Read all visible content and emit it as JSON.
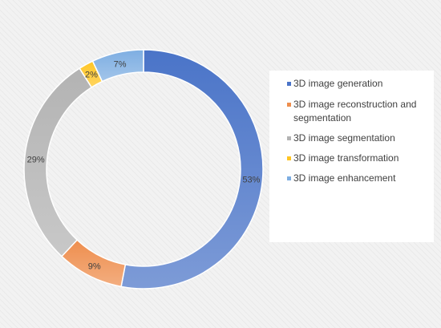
{
  "chart_data": {
    "type": "pie",
    "donut": true,
    "title": "",
    "legend_position": "right",
    "categories": [
      "3D image generation",
      "3D image reconstruction and segmentation",
      "3D image segmentation",
      "3D image transformation",
      "3D image enhancement"
    ],
    "values": [
      53,
      9,
      29,
      2,
      7
    ],
    "labels": [
      "53%",
      "9%",
      "29%",
      "2%",
      "7%"
    ],
    "colors": [
      "#4a74c8",
      "#ee8e4e",
      "#b3b3b3",
      "#ffc524",
      "#7eaee2"
    ],
    "legend": {
      "items": [
        {
          "lines": [
            "3D image generation"
          ],
          "color": "#4a74c8"
        },
        {
          "lines": [
            "3D image reconstruction and",
            "segmentation"
          ],
          "color": "#ee8e4e"
        },
        {
          "lines": [
            "3D image segmentation"
          ],
          "color": "#b3b3b3"
        },
        {
          "lines": [
            "3D image transformation"
          ],
          "color": "#ffc524"
        },
        {
          "lines": [
            "3D image enhancement"
          ],
          "color": "#7eaee2"
        }
      ]
    }
  }
}
